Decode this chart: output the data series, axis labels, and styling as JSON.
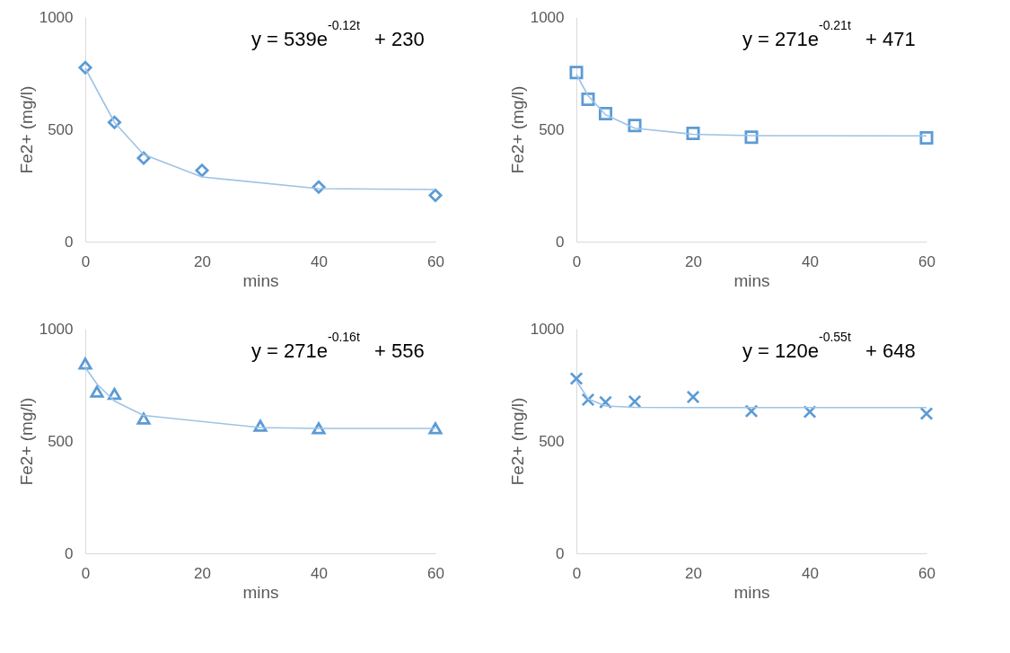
{
  "chart_data": [
    {
      "type": "scatter",
      "xlabel": "mins",
      "ylabel": "Fe2+ (mg/l)",
      "xlim": [
        0,
        60
      ],
      "ylim": [
        0,
        1000
      ],
      "xticks": [
        0,
        20,
        40,
        60
      ],
      "yticks": [
        0,
        500,
        1000
      ],
      "grid": false,
      "annotations": [
        "y = 539e$^{-0.12t}$ + 230"
      ],
      "x": [
        0,
        5,
        10,
        20,
        40,
        60
      ],
      "series": [
        {
          "color": "#5b9bd5",
          "marker": "diamond",
          "values": [
            775,
            531,
            372,
            317,
            243,
            206
          ]
        },
        {
          "type": "line",
          "color": "#9dc3e6",
          "values": [
            772,
            531,
            388,
            288,
            236,
            232
          ]
        }
      ]
    },
    {
      "type": "scatter",
      "xlabel": "mins",
      "ylabel": "Fe2+ (mg/l)",
      "xlim": [
        0,
        60
      ],
      "ylim": [
        0,
        1000
      ],
      "xticks": [
        0,
        20,
        40,
        60
      ],
      "yticks": [
        0,
        500,
        1000
      ],
      "grid": false,
      "annotations": [
        "y = 271e$^{-0.21t}$ + 471"
      ],
      "x": [
        0,
        2,
        5,
        10,
        20,
        30,
        60
      ],
      "series": [
        {
          "color": "#5b9bd5",
          "marker": "square",
          "values": [
            753,
            634,
            570,
            517,
            482,
            465,
            462
          ]
        },
        {
          "type": "line",
          "color": "#9dc3e6",
          "values": [
            745,
            650,
            565,
            505,
            478,
            472,
            471
          ]
        }
      ]
    },
    {
      "type": "scatter",
      "xlabel": "mins",
      "ylabel": "Fe2+ (mg/l)",
      "xlim": [
        0,
        60
      ],
      "ylim": [
        0,
        1000
      ],
      "xticks": [
        0,
        20,
        40,
        60
      ],
      "yticks": [
        0,
        500,
        1000
      ],
      "grid": false,
      "annotations": [
        "y = 271e$^{-0.16t}$ + 556"
      ],
      "x": [
        0,
        2,
        5,
        10,
        30,
        40,
        60
      ],
      "series": [
        {
          "color": "#5b9bd5",
          "marker": "triangle",
          "values": [
            845,
            720,
            710,
            600,
            568,
            557,
            557
          ]
        },
        {
          "type": "line",
          "color": "#9dc3e6",
          "values": [
            827,
            754,
            678,
            614,
            560,
            556,
            556
          ]
        }
      ]
    },
    {
      "type": "scatter",
      "xlabel": "mins",
      "ylabel": "Fe2+ (mg/l)",
      "xlim": [
        0,
        60
      ],
      "ylim": [
        0,
        1000
      ],
      "xticks": [
        0,
        20,
        40,
        60
      ],
      "yticks": [
        0,
        500,
        1000
      ],
      "grid": false,
      "annotations": [
        "y = 120e$^{-0.55t}$ + 648"
      ],
      "x": [
        0,
        2,
        5,
        10,
        20,
        30,
        40,
        60
      ],
      "series": [
        {
          "color": "#5b9bd5",
          "marker": "cross",
          "values": [
            778,
            684,
            673,
            676,
            696,
            633,
            630,
            622
          ]
        },
        {
          "type": "line",
          "color": "#9dc3e6",
          "values": [
            768,
            688,
            656,
            650,
            649,
            649,
            649,
            649
          ]
        }
      ]
    }
  ]
}
